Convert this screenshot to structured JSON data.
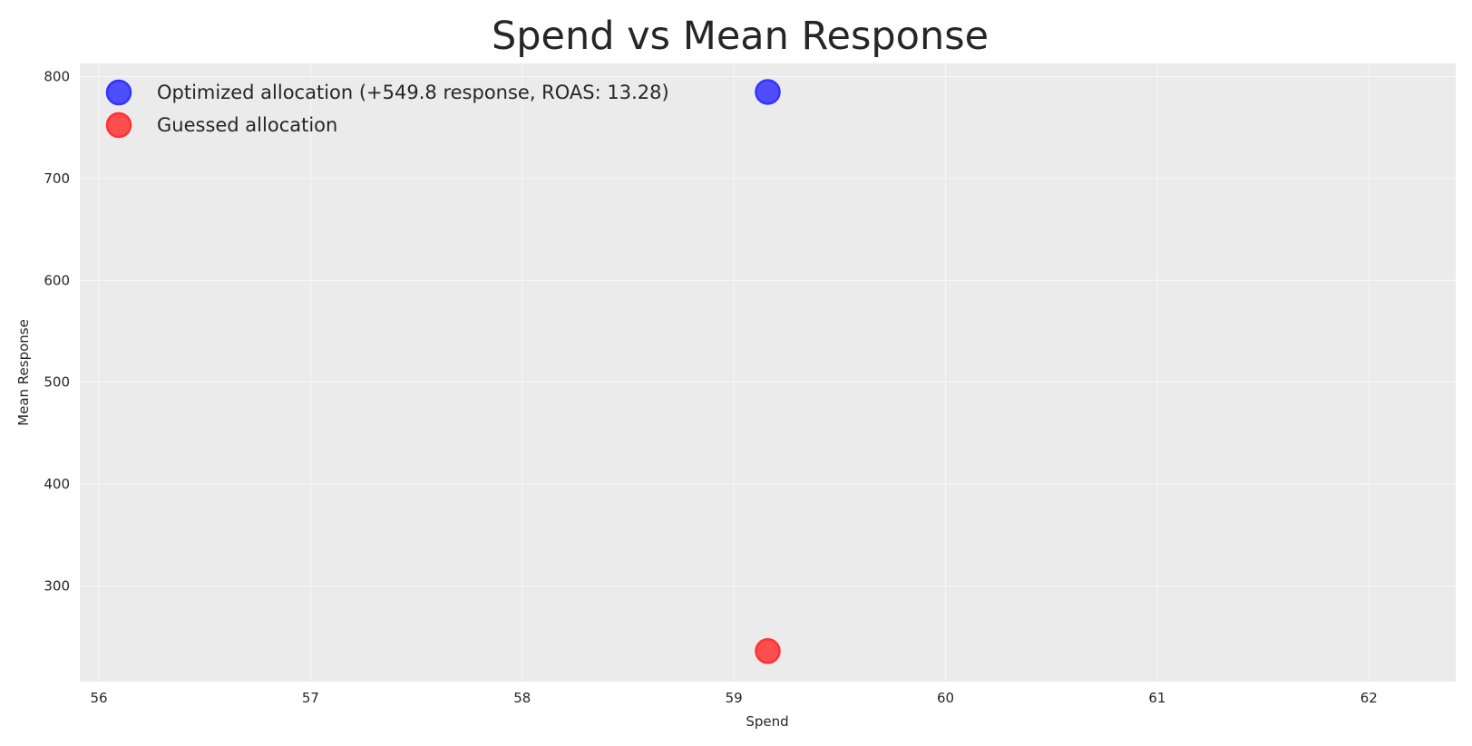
{
  "chart_data": {
    "type": "scatter",
    "title": "Spend vs Mean Response",
    "xlabel": "Spend",
    "ylabel": "Mean Response",
    "xlim": [
      55.91,
      62.41
    ],
    "ylim": [
      206,
      813
    ],
    "xticks": [
      56,
      57,
      58,
      59,
      60,
      61,
      62
    ],
    "yticks": [
      300,
      400,
      500,
      600,
      700,
      800
    ],
    "grid": true,
    "legend_position": "top-left",
    "series": [
      {
        "name": "Optimized allocation (+549.8 response, ROAS: 13.28)",
        "color": "#3333ff",
        "points": [
          {
            "x": 59.16,
            "y": 785
          }
        ]
      },
      {
        "name": "Guessed allocation",
        "color": "#ff3333",
        "points": [
          {
            "x": 59.16,
            "y": 236
          }
        ]
      }
    ]
  }
}
